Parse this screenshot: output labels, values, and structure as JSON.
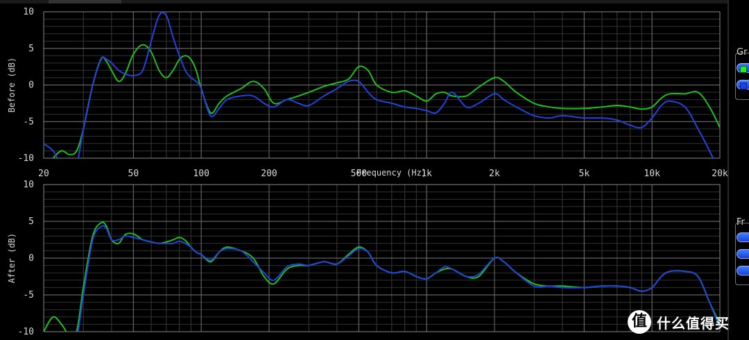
{
  "chart_data": [
    {
      "type": "line",
      "ylabel": "Before (dB)",
      "xlabel": "Frequency (Hz)",
      "xscale": "log",
      "xlim": [
        20,
        20000
      ],
      "ylim": [
        -10,
        10
      ],
      "xticks": [
        20,
        50,
        100,
        200,
        500,
        1000,
        2000,
        5000,
        10000,
        20000
      ],
      "xticklabels": [
        "20",
        "50",
        "100",
        "200",
        "500",
        "1k",
        "2k",
        "5k",
        "10k",
        "20k"
      ],
      "yticks": [
        10,
        5,
        0,
        -5,
        -10
      ],
      "grid": true,
      "series": [
        {
          "color": "#1fbf1f",
          "x": [
            20,
            22,
            24,
            26,
            28,
            30,
            33,
            36,
            38,
            40,
            43,
            46,
            50,
            55,
            60,
            65,
            70,
            75,
            80,
            85,
            90,
            95,
            100,
            110,
            120,
            130,
            150,
            170,
            190,
            210,
            240,
            270,
            300,
            350,
            400,
            450,
            500,
            550,
            600,
            700,
            800,
            900,
            1000,
            1100,
            1200,
            1300,
            1500,
            1700,
            2000,
            2200,
            2500,
            3000,
            3500,
            4000,
            5000,
            6000,
            7000,
            8000,
            9000,
            10000,
            11000,
            12000,
            14000,
            16000,
            18000,
            20000
          ],
          "values": [
            -11.5,
            -10,
            -9,
            -9.5,
            -9,
            -6,
            0,
            3.6,
            3.2,
            2,
            0.5,
            1.5,
            4.2,
            5.5,
            4.5,
            2,
            1,
            2,
            3.5,
            4,
            3.5,
            2,
            -0.5,
            -3.8,
            -2.5,
            -1.5,
            -0.5,
            0.5,
            -0.5,
            -2.5,
            -2,
            -1.5,
            -1,
            -0.2,
            0.3,
            0.8,
            2.5,
            2,
            0,
            -1,
            -0.8,
            -1.5,
            -2.2,
            -1.2,
            -1,
            -1.5,
            -1.5,
            -0.3,
            1,
            0.5,
            -1,
            -2.5,
            -3,
            -3.2,
            -3.2,
            -3,
            -2.8,
            -3,
            -3.3,
            -3,
            -1.8,
            -1.2,
            -1.2,
            -1,
            -3,
            -5.8
          ]
        },
        {
          "color": "#2244dd",
          "x": [
            20,
            22,
            24,
            26,
            28,
            30,
            33,
            36,
            38,
            40,
            43,
            46,
            50,
            55,
            60,
            65,
            70,
            75,
            80,
            85,
            90,
            95,
            100,
            110,
            120,
            130,
            150,
            170,
            190,
            210,
            240,
            270,
            300,
            350,
            400,
            450,
            500,
            550,
            600,
            700,
            800,
            900,
            1000,
            1100,
            1200,
            1300,
            1500,
            1700,
            2000,
            2200,
            2500,
            3000,
            3500,
            4000,
            5000,
            6000,
            7000,
            8000,
            9000,
            10000,
            11000,
            12000,
            14000,
            16000,
            18000,
            20000
          ],
          "values": [
            -8,
            -9,
            -11,
            -12,
            -11,
            -6,
            0,
            3.5,
            3.5,
            3,
            2,
            1.5,
            1.3,
            2,
            6,
            9.5,
            9.5,
            6.5,
            4,
            2,
            1,
            0.5,
            -0.5,
            -4.2,
            -3.2,
            -2,
            -1.5,
            -1.5,
            -2.5,
            -3,
            -2,
            -2.5,
            -2.8,
            -1.5,
            -0.5,
            0.5,
            0.5,
            -1,
            -2,
            -2.5,
            -3,
            -3.2,
            -3.5,
            -3.8,
            -2.5,
            -1,
            -3,
            -2.5,
            -1.2,
            -2,
            -3,
            -4.2,
            -4.5,
            -4.2,
            -4.5,
            -4.5,
            -4.8,
            -5.5,
            -5.8,
            -4.5,
            -2.8,
            -2.2,
            -3,
            -6,
            -9,
            -12
          ]
        }
      ]
    },
    {
      "type": "line",
      "ylabel": "After (dB)",
      "xscale": "log",
      "xlim": [
        20,
        20000
      ],
      "ylim": [
        -10,
        10
      ],
      "xticks": [
        20,
        50,
        100,
        200,
        500,
        1000,
        2000,
        5000,
        10000,
        20000
      ],
      "yticks": [
        10,
        5,
        0,
        -5,
        -10
      ],
      "grid": true,
      "series": [
        {
          "color": "#1fbf1f",
          "x": [
            20,
            22,
            24,
            26,
            28,
            30,
            33,
            36,
            38,
            40,
            43,
            46,
            50,
            55,
            60,
            65,
            70,
            75,
            80,
            85,
            90,
            95,
            100,
            110,
            120,
            130,
            150,
            170,
            190,
            210,
            240,
            270,
            300,
            350,
            400,
            450,
            500,
            550,
            600,
            700,
            800,
            900,
            1000,
            1100,
            1200,
            1300,
            1500,
            1700,
            2000,
            2200,
            2500,
            3000,
            3500,
            4000,
            5000,
            6000,
            7000,
            8000,
            9000,
            10000,
            11000,
            12000,
            14000,
            16000,
            18000,
            20000
          ],
          "values": [
            -10,
            -8,
            -9,
            -10.5,
            -10,
            -4,
            3,
            4.8,
            4.3,
            2.5,
            2,
            3.2,
            3.3,
            2.5,
            2.2,
            2,
            2.2,
            2.5,
            2.8,
            2.4,
            1.5,
            0.8,
            0.5,
            -0.5,
            0.8,
            1.5,
            1,
            0,
            -2.5,
            -3.5,
            -1.5,
            -1,
            -1,
            -0.5,
            -0.8,
            0.5,
            1.5,
            0.8,
            -1,
            -2,
            -1.8,
            -2.5,
            -2.8,
            -2,
            -1.5,
            -1.5,
            -2.5,
            -2.5,
            0,
            -0.5,
            -2,
            -3.5,
            -3.8,
            -3.8,
            -4,
            -3.8,
            -3.8,
            -4,
            -4.5,
            -4,
            -2.5,
            -1.8,
            -1.8,
            -2.5,
            -6,
            -9
          ]
        },
        {
          "color": "#2244dd",
          "x": [
            20,
            22,
            24,
            26,
            28,
            30,
            33,
            36,
            38,
            40,
            43,
            46,
            50,
            55,
            60,
            65,
            70,
            75,
            80,
            85,
            90,
            95,
            100,
            110,
            120,
            130,
            150,
            170,
            190,
            210,
            240,
            270,
            300,
            350,
            400,
            450,
            500,
            550,
            600,
            700,
            800,
            900,
            1000,
            1100,
            1200,
            1300,
            1500,
            1700,
            2000,
            2200,
            2500,
            3000,
            3500,
            4000,
            5000,
            6000,
            7000,
            8000,
            9000,
            10000,
            11000,
            12000,
            14000,
            16000,
            18000,
            20000
          ],
          "values": [
            -10.5,
            -11,
            -11.5,
            -12,
            -11,
            -5,
            2.5,
            4.3,
            4,
            2.5,
            2.5,
            3,
            2.8,
            2.5,
            2.2,
            2,
            2,
            2,
            2.3,
            2,
            1.5,
            0.8,
            0.5,
            -0.3,
            0.8,
            1.3,
            1,
            -0.5,
            -2,
            -3,
            -1.2,
            -0.8,
            -1,
            -0.5,
            -0.8,
            0.3,
            1.3,
            0.8,
            -1,
            -2,
            -1.8,
            -2.5,
            -2.8,
            -2,
            -1.2,
            -1.5,
            -2.5,
            -2.2,
            0,
            -0.5,
            -2,
            -3.8,
            -3.8,
            -4,
            -4,
            -3.8,
            -3.8,
            -4,
            -4.5,
            -4,
            -2.5,
            -1.8,
            -1.8,
            -2.5,
            -6,
            -9.5
          ]
        }
      ]
    }
  ],
  "side_panels": [
    {
      "label": "Gr",
      "checks": [
        "#22ee22",
        "#1a44dd"
      ]
    },
    {
      "label": "Fr",
      "checks": []
    }
  ],
  "watermark": {
    "icon_text": "值",
    "text": "什么值得买"
  }
}
